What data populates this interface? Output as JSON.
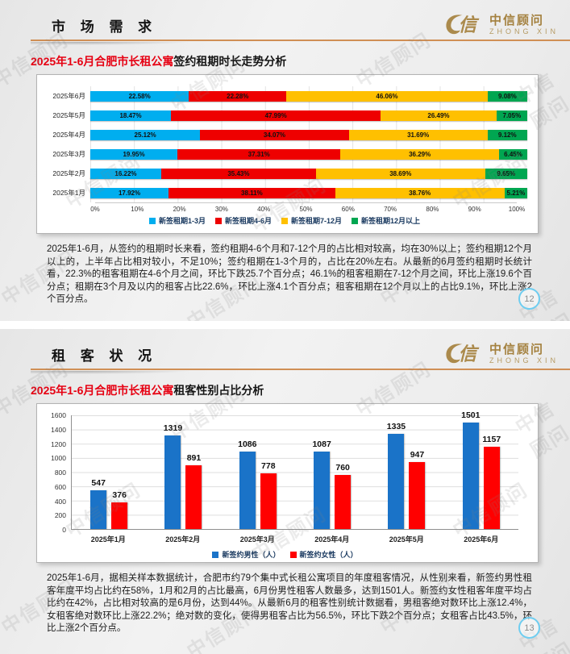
{
  "watermark": "中信顾问",
  "logo": {
    "name": "中信顾问",
    "sub": "ZHONG XIN"
  },
  "slide1": {
    "section_title": "市 场 需 求",
    "title_red": "2025年1-6月合肥市长租公寓",
    "title_black": "签约租期时长走势分析",
    "body": "2025年1-6月，从签约的租期时长来看，签约租期4-6个月和7-12个月的占比相对较高，均在30%以上；签约租期12个月以上的，上半年占比相对较小，不足10%；签约租期在1-3个月的，占比在20%左右。从最新的6月签约租期时长统计看，22.3%的租客租期在4-6个月之间，环比下跌25.7个百分点；46.1%的租客租期在7-12个月之间，环比上涨19.6个百分点；租期在3个月及以内的租客占比22.6%，环比上涨4.1个百分点；租客租期在12个月以上的占比9.1%，环比上涨2个百分点。",
    "page": "12"
  },
  "slide2": {
    "section_title": "租 客 状 况",
    "title_red": "2025年1-6月合肥市长租公寓",
    "title_black": "租客性别占比分析",
    "body": "2025年1-6月，据相关样本数据统计，合肥市约79个集中式长租公寓项目的年度租客情况，从性别来看，新签约男性租客年度平均占比约在58%，1月和2月的占比最高，6月份男性租客人数最多，达到1501人。新签约女性租客年度平均占比约在42%，占比相对较高的是6月份，达到44%。从最新6月的租客性别统计数据看，男租客绝对数环比上涨12.4%，女租客绝对数环比上涨22.2%；绝对数的变化，使得男租客占比为56.5%，环比下跌2个百分点；女租客占比43.5%，环比上涨2个百分点。",
    "page": "13"
  },
  "chart_data": [
    {
      "type": "bar",
      "orientation": "horizontal-stacked",
      "title": "2025年1-6月合肥市长租公寓签约租期时长走势分析",
      "categories": [
        "2025年6月",
        "2025年5月",
        "2025年4月",
        "2025年3月",
        "2025年2月",
        "2025年1月"
      ],
      "series": [
        {
          "name": "新签租期1-3月",
          "color": "#00AEEF",
          "values": [
            22.58,
            18.47,
            25.12,
            19.95,
            16.22,
            17.92
          ]
        },
        {
          "name": "新签租期4-6月",
          "color": "#EE0000",
          "values": [
            22.28,
            47.99,
            34.07,
            37.31,
            35.43,
            38.11
          ]
        },
        {
          "name": "新签租期7-12月",
          "color": "#FFC000",
          "values": [
            46.06,
            26.49,
            31.69,
            36.29,
            38.69,
            38.76
          ]
        },
        {
          "name": "新签租期12月以上",
          "color": "#00A651",
          "values": [
            9.08,
            7.05,
            9.12,
            6.45,
            9.65,
            5.21
          ]
        }
      ],
      "x_ticks": [
        "0%",
        "10%",
        "20%",
        "30%",
        "40%",
        "50%",
        "60%",
        "70%",
        "80%",
        "90%",
        "100%"
      ],
      "xlim": [
        0,
        100
      ],
      "unit": "%",
      "grid": "vertical",
      "legend_position": "bottom"
    },
    {
      "type": "bar",
      "orientation": "vertical-grouped",
      "title": "2025年1-6月合肥市长租公寓租客性别占比分析",
      "categories": [
        "2025年1月",
        "2025年2月",
        "2025年3月",
        "2025年4月",
        "2025年5月",
        "2025年6月"
      ],
      "series": [
        {
          "name": "新签约男性（人）",
          "color": "#1A73C8",
          "values": [
            547,
            1319,
            1086,
            1087,
            1335,
            1501
          ]
        },
        {
          "name": "新签约女性（人）",
          "color": "#FF0000",
          "values": [
            376,
            891,
            778,
            760,
            947,
            1157
          ]
        }
      ],
      "y_ticks": [
        0,
        200,
        400,
        600,
        800,
        1000,
        1200,
        1400,
        1600
      ],
      "ylim": [
        0,
        1600
      ],
      "grid": "horizontal",
      "legend_position": "bottom"
    }
  ]
}
